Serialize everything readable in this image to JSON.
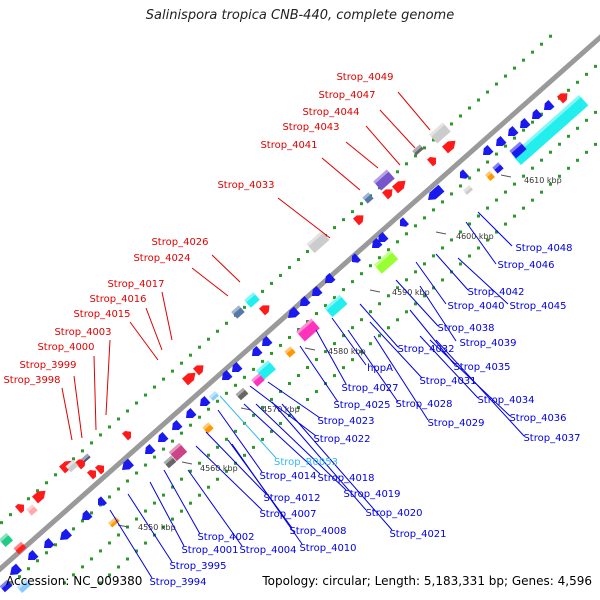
{
  "title": "Salinispora tropica CNB-440, complete genome",
  "footer": {
    "accession": "Accession: NC_009380",
    "summary": "Topology: circular; Length: 5,183,331 bp; Genes: 4,596"
  },
  "colors": {
    "backbone": "#9a9a9a",
    "forward_label": "#e00000",
    "reverse_label": "#0000e0",
    "rna_label": "#33bbee",
    "dots": "#2a9a2a"
  },
  "ticks": [
    "4550 kbp",
    "4560 kbp",
    "4570 kbp",
    "4580 kbp",
    "4590 kbp",
    "4600 kbp",
    "4610 kbp"
  ],
  "forward_genes": [
    "Strop_4049",
    "Strop_4047",
    "Strop_4044",
    "Strop_4043",
    "Strop_4041",
    "Strop_4033",
    "Strop_4026",
    "Strop_4024",
    "Strop_4017",
    "Strop_4016",
    "Strop_4015",
    "Strop_4003",
    "Strop_4000",
    "Strop_3999",
    "Strop_3998"
  ],
  "reverse_genes": [
    "Strop_4048",
    "Strop_4046",
    "Strop_4042",
    "Strop_4045",
    "Strop_4040",
    "Strop_4038",
    "Strop_4039",
    "Strop_4032",
    "Strop_4035",
    "hppA",
    "Strop_4031",
    "Strop_4027",
    "Strop_4028",
    "Strop_4034",
    "Strop_4025",
    "Strop_4029",
    "Strop_4036",
    "Strop_4037",
    "Strop_4023",
    "Strop_4022",
    "Strop_R0053",
    "Strop_4014",
    "Strop_4018",
    "Strop_4019",
    "Strop_4012",
    "Strop_4020",
    "Strop_4007",
    "Strop_4008",
    "Strop_4021",
    "Strop_4002",
    "Strop_4010",
    "Strop_4001",
    "Strop_4004",
    "Strop_3995",
    "Strop_3994"
  ]
}
